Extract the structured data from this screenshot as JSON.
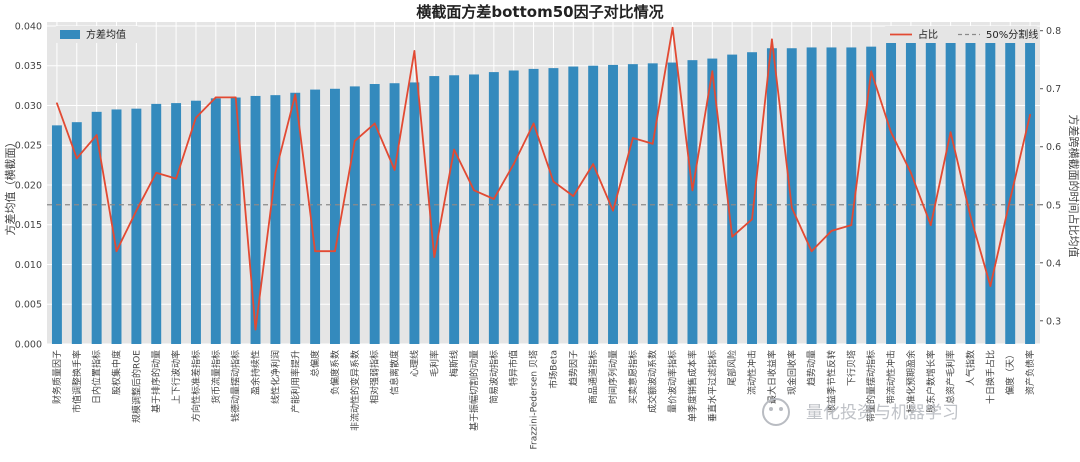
{
  "chart_data": {
    "type": "bar",
    "title": "横截面方差bottom50因子对比情况",
    "xlabel": "",
    "ylabel": "方差均值（横截面）",
    "ylabel_right": "方差跨横截面的时间占比均值",
    "ylim": [
      0,
      0.0405
    ],
    "ylim_right": [
      0.26,
      0.815
    ],
    "yticks": [
      "0.000",
      "0.005",
      "0.010",
      "0.015",
      "0.020",
      "0.025",
      "0.030",
      "0.035",
      "0.040"
    ],
    "yticks_right": [
      "0.3",
      "0.4",
      "0.5",
      "0.6",
      "0.7",
      "0.8"
    ],
    "grid": true,
    "colors": {
      "bar": "#348abd",
      "line": "#e24a33",
      "ref": "#8a8a8a",
      "bg": "#e5e5e5",
      "grid": "#ffffff"
    },
    "categories": [
      "财务质量因子",
      "市值调整换手率",
      "日内位置指标",
      "股权集中度",
      "规模调整后的ROE",
      "基于排序的动量",
      "上下行波动率",
      "方向性标准差指标",
      "货币流量指标",
      "钱德动量摆动指标",
      "盈余持续性",
      "线性化净利润",
      "产能利用率提升",
      "总偏度",
      "负偏度系数",
      "非流动性的变异系数",
      "相对强弱指标",
      "信息离散度",
      "心理线",
      "毛利率",
      "梅斯线",
      "基于振幅切割的动量",
      "简易波动指标",
      "特异市值",
      "Frazzini-Pedersen 贝塔",
      "市场Beta",
      "趋势因子",
      "商品通道指标",
      "时间序列动量",
      "买卖意愿指标",
      "成交额波动系数",
      "量价波动率指标",
      "单季度销售成本率",
      "垂直水平过滤指标",
      "尾部风险",
      "流动性冲击",
      "最大日收益率",
      "现金回收率",
      "趋势动量",
      "收益季节性反转",
      "下行贝塔",
      "带量的量摆动指标",
      "带流动性冲击",
      "标准化预期盈余",
      "股东户数增长率",
      "总资产毛利率",
      "人气指数",
      "十日换手占比",
      "偏度（天）",
      "资产负债率"
    ],
    "series": [
      {
        "name": "方差均值",
        "type": "bar",
        "values": [
          0.0275,
          0.0279,
          0.0292,
          0.0295,
          0.0296,
          0.0302,
          0.0303,
          0.0306,
          0.0309,
          0.031,
          0.0312,
          0.0313,
          0.0316,
          0.032,
          0.0321,
          0.0324,
          0.0327,
          0.0328,
          0.0329,
          0.0337,
          0.0338,
          0.0339,
          0.0342,
          0.0344,
          0.0346,
          0.0347,
          0.0349,
          0.035,
          0.0351,
          0.0352,
          0.0353,
          0.0354,
          0.0357,
          0.0359,
          0.0364,
          0.0367,
          0.0372,
          0.0372,
          0.0373,
          0.0373,
          0.0373,
          0.0374,
          0.0379,
          0.0381,
          0.0381,
          0.0382,
          0.0382,
          0.0381,
          0.0381,
          0.0381
        ]
      },
      {
        "name": "占比",
        "type": "line",
        "values": [
          0.675,
          0.58,
          0.62,
          0.42,
          0.49,
          0.555,
          0.545,
          0.65,
          0.685,
          0.685,
          0.285,
          0.555,
          0.69,
          0.42,
          0.42,
          0.61,
          0.64,
          0.56,
          0.765,
          0.41,
          0.595,
          0.525,
          0.51,
          0.57,
          0.64,
          0.54,
          0.515,
          0.57,
          0.49,
          0.615,
          0.605,
          0.805,
          0.525,
          0.73,
          0.445,
          0.475,
          0.785,
          0.495,
          0.42,
          0.455,
          0.465,
          0.73,
          0.625,
          0.555,
          0.465,
          0.625,
          0.48,
          0.36,
          0.51,
          0.655
        ]
      }
    ],
    "reference_line": {
      "name": "50%分割线",
      "value": 0.5
    },
    "legend_left": "top-left",
    "legend_right": "top-right",
    "watermark": "量化投资与机器学习"
  }
}
